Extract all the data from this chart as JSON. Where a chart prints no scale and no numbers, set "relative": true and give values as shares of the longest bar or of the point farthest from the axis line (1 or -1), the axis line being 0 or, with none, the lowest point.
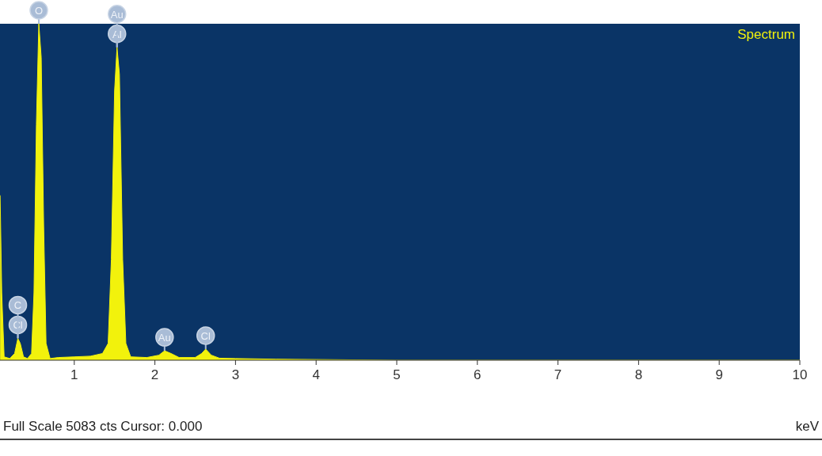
{
  "chart_data": {
    "type": "area",
    "relative": true,
    "xlabel": "keV",
    "x": [
      0.08,
      0.1,
      0.13,
      0.2,
      0.26,
      0.3,
      0.33,
      0.37,
      0.42,
      0.47,
      0.5,
      0.53,
      0.56,
      0.59,
      0.62,
      0.65,
      0.7,
      0.8,
      1.0,
      1.2,
      1.35,
      1.42,
      1.46,
      1.5,
      1.53,
      1.56,
      1.6,
      1.64,
      1.7,
      1.9,
      2.05,
      2.12,
      2.2,
      2.3,
      2.5,
      2.58,
      2.63,
      2.7,
      2.8,
      3.0,
      3.5,
      4.0,
      4.5,
      5.0,
      10.0
    ],
    "series": [
      {
        "name": "Spectrum",
        "color": "#f2f20c",
        "values": [
          0.49,
          0.2,
          0.01,
          0.005,
          0.02,
          0.065,
          0.05,
          0.01,
          0.005,
          0.02,
          0.2,
          0.7,
          1.0,
          0.9,
          0.4,
          0.05,
          0.005,
          0.008,
          0.01,
          0.012,
          0.02,
          0.05,
          0.3,
          0.8,
          0.93,
          0.85,
          0.3,
          0.05,
          0.01,
          0.008,
          0.015,
          0.028,
          0.02,
          0.008,
          0.008,
          0.02,
          0.033,
          0.015,
          0.006,
          0.005,
          0.003,
          0.002,
          0.001,
          0,
          0
        ]
      }
    ],
    "xlim": [
      0,
      10
    ],
    "xticks": [
      1,
      2,
      3,
      4,
      5,
      6,
      7,
      8,
      9,
      10
    ],
    "legend": "top right",
    "annotations": [
      {
        "text": "O",
        "x": 0.56,
        "y": 1.0
      },
      {
        "text": "Al",
        "x": 1.53,
        "y": 0.93
      },
      {
        "text": "Au",
        "x": 1.53,
        "y": 0.93
      },
      {
        "text": "Cl",
        "x": 0.3,
        "y": 0.065
      },
      {
        "text": "C",
        "x": 0.3,
        "y": 0.065
      },
      {
        "text": "Au",
        "x": 2.12,
        "y": 0.028
      },
      {
        "text": "Cl",
        "x": 2.63,
        "y": 0.033
      },
      "Full Scale 5083 cts Cursor: 0.000"
    ]
  }
}
